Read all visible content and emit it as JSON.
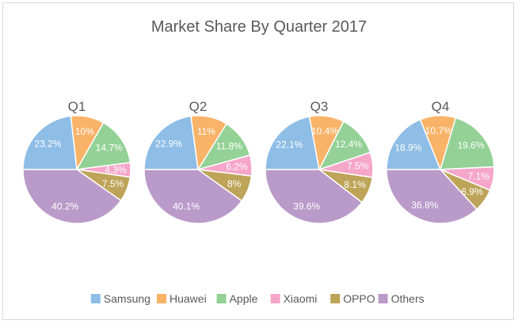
{
  "chart_data": {
    "type": "pie",
    "title": "Market Share By Quarter 2017",
    "legend_position": "bottom",
    "categories": [
      "Samsung",
      "Huawei",
      "Apple",
      "Xiaomi",
      "OPPO",
      "Others"
    ],
    "colors": [
      "#8ebde6",
      "#f9b368",
      "#93d196",
      "#f5a6c9",
      "#bda459",
      "#b99ac9"
    ],
    "pies": [
      {
        "name": "Q1",
        "values": [
          23.2,
          10,
          14.7,
          4.3,
          7.5,
          40.2
        ],
        "labels": [
          "23.2%",
          "10%",
          "14.7%",
          "4.3%",
          "7.5%",
          "40.2%"
        ]
      },
      {
        "name": "Q2",
        "values": [
          22.9,
          11,
          11.8,
          6.2,
          8,
          40.1
        ],
        "labels": [
          "22.9%",
          "11%",
          "11.8%",
          "6.2%",
          "8%",
          "40.1%"
        ]
      },
      {
        "name": "Q3",
        "values": [
          22.1,
          10.4,
          12.4,
          7.5,
          8.1,
          39.6
        ],
        "labels": [
          "22.1%",
          "10.4%",
          "12.4%",
          "7.5%",
          "8.1%",
          "39.6%"
        ]
      },
      {
        "name": "Q4",
        "values": [
          18.9,
          10.7,
          19.6,
          7.1,
          6.9,
          36.8
        ],
        "labels": [
          "18.9%",
          "10.7%",
          "19.6%",
          "7.1%",
          "6.9%",
          "36.8%"
        ]
      }
    ]
  }
}
